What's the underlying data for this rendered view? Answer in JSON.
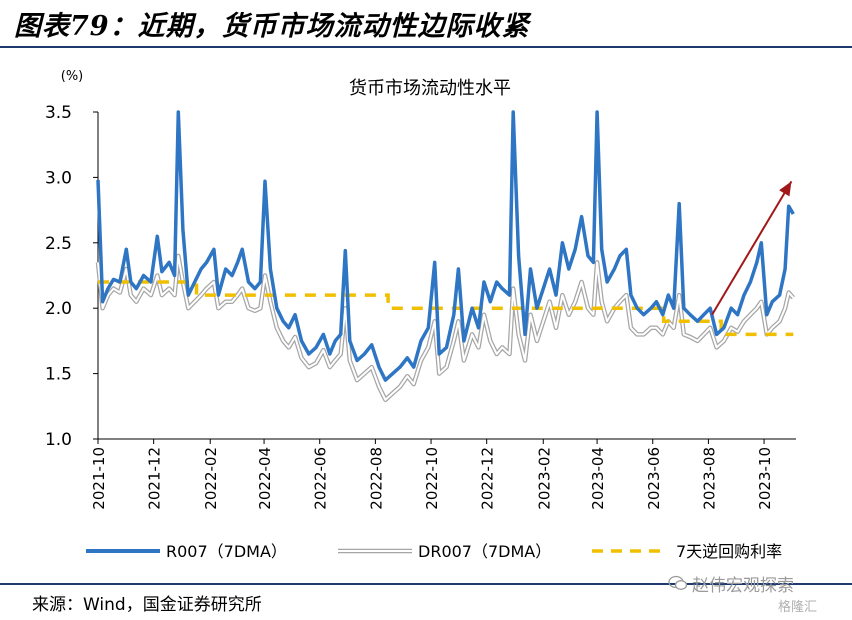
{
  "heading": "图表79：近期，货币市场流动性边际收紧",
  "source": "来源：Wind，国金证券研究所",
  "watermark": "赵伟宏观探索",
  "watermark2": "格隆汇",
  "chart_data": {
    "type": "line",
    "title": "货币市场流动性水平",
    "yunit": "(%)",
    "ylim": [
      1.0,
      3.5
    ],
    "yticks": [
      "1.0",
      "1.5",
      "2.0",
      "2.5",
      "3.0",
      "3.5"
    ],
    "xticks": [
      "2021-10",
      "2021-12",
      "2022-02",
      "2022-04",
      "2022-06",
      "2022-08",
      "2022-10",
      "2022-12",
      "2023-02",
      "2023-04",
      "2023-06",
      "2023-08",
      "2023-10"
    ],
    "xrange": [
      "2021-10-01",
      "2023-11-05"
    ],
    "legend": [
      "R007（7DMA）",
      "DR007（7DMA）",
      "7天逆回购利率"
    ],
    "colors": {
      "r007": "#2e75c4",
      "dr007": "#a6a6a6",
      "policy": "#f0c000",
      "arrow": "#a11818"
    },
    "series": [
      {
        "name": "R007（7DMA）",
        "points": [
          [
            "2021-10-01",
            2.98
          ],
          [
            "2021-10-06",
            2.05
          ],
          [
            "2021-10-12",
            2.15
          ],
          [
            "2021-10-18",
            2.22
          ],
          [
            "2021-10-25",
            2.2
          ],
          [
            "2021-11-01",
            2.45
          ],
          [
            "2021-11-06",
            2.2
          ],
          [
            "2021-11-12",
            2.15
          ],
          [
            "2021-11-20",
            2.25
          ],
          [
            "2021-11-28",
            2.2
          ],
          [
            "2021-12-05",
            2.55
          ],
          [
            "2021-12-10",
            2.28
          ],
          [
            "2021-12-18",
            2.35
          ],
          [
            "2021-12-24",
            2.25
          ],
          [
            "2021-12-28",
            3.5
          ],
          [
            "2022-01-02",
            2.6
          ],
          [
            "2022-01-08",
            2.1
          ],
          [
            "2022-01-15",
            2.2
          ],
          [
            "2022-01-22",
            2.3
          ],
          [
            "2022-01-28",
            2.35
          ],
          [
            "2022-02-05",
            2.45
          ],
          [
            "2022-02-10",
            2.1
          ],
          [
            "2022-02-18",
            2.3
          ],
          [
            "2022-02-25",
            2.25
          ],
          [
            "2022-03-03",
            2.35
          ],
          [
            "2022-03-08",
            2.45
          ],
          [
            "2022-03-15",
            2.2
          ],
          [
            "2022-03-22",
            2.15
          ],
          [
            "2022-03-28",
            2.2
          ],
          [
            "2022-04-02",
            2.97
          ],
          [
            "2022-04-08",
            2.3
          ],
          [
            "2022-04-15",
            2.0
          ],
          [
            "2022-04-22",
            1.9
          ],
          [
            "2022-04-28",
            1.85
          ],
          [
            "2022-05-05",
            1.95
          ],
          [
            "2022-05-12",
            1.75
          ],
          [
            "2022-05-20",
            1.65
          ],
          [
            "2022-05-28",
            1.7
          ],
          [
            "2022-06-05",
            1.8
          ],
          [
            "2022-06-12",
            1.65
          ],
          [
            "2022-06-18",
            1.75
          ],
          [
            "2022-06-24",
            1.8
          ],
          [
            "2022-06-29",
            2.44
          ],
          [
            "2022-07-04",
            1.75
          ],
          [
            "2022-07-12",
            1.6
          ],
          [
            "2022-07-20",
            1.65
          ],
          [
            "2022-07-28",
            1.72
          ],
          [
            "2022-08-05",
            1.55
          ],
          [
            "2022-08-12",
            1.45
          ],
          [
            "2022-08-20",
            1.5
          ],
          [
            "2022-08-28",
            1.55
          ],
          [
            "2022-09-05",
            1.62
          ],
          [
            "2022-09-12",
            1.55
          ],
          [
            "2022-09-20",
            1.75
          ],
          [
            "2022-09-28",
            1.85
          ],
          [
            "2022-10-05",
            2.35
          ],
          [
            "2022-10-10",
            1.65
          ],
          [
            "2022-10-18",
            1.7
          ],
          [
            "2022-10-26",
            1.95
          ],
          [
            "2022-10-31",
            2.3
          ],
          [
            "2022-11-06",
            1.75
          ],
          [
            "2022-11-15",
            2.0
          ],
          [
            "2022-11-22",
            1.85
          ],
          [
            "2022-11-28",
            2.2
          ],
          [
            "2022-12-05",
            2.05
          ],
          [
            "2022-12-12",
            2.2
          ],
          [
            "2022-12-18",
            2.15
          ],
          [
            "2022-12-26",
            2.1
          ],
          [
            "2022-12-30",
            3.5
          ],
          [
            "2023-01-05",
            2.4
          ],
          [
            "2023-01-12",
            1.8
          ],
          [
            "2023-01-18",
            2.3
          ],
          [
            "2023-01-25",
            2.0
          ],
          [
            "2023-02-01",
            2.15
          ],
          [
            "2023-02-08",
            2.3
          ],
          [
            "2023-02-15",
            2.1
          ],
          [
            "2023-02-22",
            2.5
          ],
          [
            "2023-03-01",
            2.3
          ],
          [
            "2023-03-08",
            2.45
          ],
          [
            "2023-03-15",
            2.7
          ],
          [
            "2023-03-22",
            2.4
          ],
          [
            "2023-03-28",
            2.35
          ],
          [
            "2023-04-01",
            3.5
          ],
          [
            "2023-04-06",
            2.45
          ],
          [
            "2023-04-12",
            2.2
          ],
          [
            "2023-04-20",
            2.3
          ],
          [
            "2023-04-26",
            2.4
          ],
          [
            "2023-05-03",
            2.45
          ],
          [
            "2023-05-08",
            2.1
          ],
          [
            "2023-05-15",
            2.0
          ],
          [
            "2023-05-22",
            1.95
          ],
          [
            "2023-05-30",
            2.0
          ],
          [
            "2023-06-05",
            2.05
          ],
          [
            "2023-06-12",
            1.95
          ],
          [
            "2023-06-18",
            2.1
          ],
          [
            "2023-06-24",
            2.0
          ],
          [
            "2023-06-30",
            2.8
          ],
          [
            "2023-07-05",
            2.0
          ],
          [
            "2023-07-12",
            1.95
          ],
          [
            "2023-07-20",
            1.9
          ],
          [
            "2023-07-27",
            1.95
          ],
          [
            "2023-08-03",
            2.0
          ],
          [
            "2023-08-10",
            1.8
          ],
          [
            "2023-08-18",
            1.85
          ],
          [
            "2023-08-26",
            2.0
          ],
          [
            "2023-09-02",
            1.95
          ],
          [
            "2023-09-09",
            2.1
          ],
          [
            "2023-09-16",
            2.2
          ],
          [
            "2023-09-23",
            2.35
          ],
          [
            "2023-09-28",
            2.5
          ],
          [
            "2023-10-04",
            1.95
          ],
          [
            "2023-10-10",
            2.05
          ],
          [
            "2023-10-18",
            2.1
          ],
          [
            "2023-10-24",
            2.3
          ],
          [
            "2023-10-28",
            2.78
          ],
          [
            "2023-11-02",
            2.72
          ]
        ]
      },
      {
        "name": "DR007（7DMA）",
        "points": [
          [
            "2021-10-01",
            2.35
          ],
          [
            "2021-10-06",
            2.0
          ],
          [
            "2021-10-12",
            2.1
          ],
          [
            "2021-10-18",
            2.15
          ],
          [
            "2021-10-25",
            2.12
          ],
          [
            "2021-11-01",
            2.3
          ],
          [
            "2021-11-06",
            2.1
          ],
          [
            "2021-11-12",
            2.05
          ],
          [
            "2021-11-20",
            2.15
          ],
          [
            "2021-11-28",
            2.1
          ],
          [
            "2021-12-05",
            2.25
          ],
          [
            "2021-12-10",
            2.1
          ],
          [
            "2021-12-18",
            2.15
          ],
          [
            "2021-12-24",
            2.1
          ],
          [
            "2021-12-28",
            2.4
          ],
          [
            "2022-01-02",
            2.2
          ],
          [
            "2022-01-08",
            2.0
          ],
          [
            "2022-01-15",
            2.05
          ],
          [
            "2022-01-22",
            2.1
          ],
          [
            "2022-01-28",
            2.15
          ],
          [
            "2022-02-05",
            2.2
          ],
          [
            "2022-02-10",
            2.0
          ],
          [
            "2022-02-18",
            2.05
          ],
          [
            "2022-02-25",
            2.05
          ],
          [
            "2022-03-03",
            2.1
          ],
          [
            "2022-03-08",
            2.15
          ],
          [
            "2022-03-15",
            2.0
          ],
          [
            "2022-03-22",
            1.98
          ],
          [
            "2022-03-28",
            2.0
          ],
          [
            "2022-04-02",
            2.25
          ],
          [
            "2022-04-08",
            2.05
          ],
          [
            "2022-04-15",
            1.85
          ],
          [
            "2022-04-22",
            1.75
          ],
          [
            "2022-04-28",
            1.7
          ],
          [
            "2022-05-05",
            1.78
          ],
          [
            "2022-05-12",
            1.62
          ],
          [
            "2022-05-20",
            1.55
          ],
          [
            "2022-05-28",
            1.58
          ],
          [
            "2022-06-05",
            1.68
          ],
          [
            "2022-06-12",
            1.55
          ],
          [
            "2022-06-18",
            1.6
          ],
          [
            "2022-06-24",
            1.65
          ],
          [
            "2022-06-29",
            2.0
          ],
          [
            "2022-07-04",
            1.6
          ],
          [
            "2022-07-12",
            1.45
          ],
          [
            "2022-07-20",
            1.5
          ],
          [
            "2022-07-28",
            1.55
          ],
          [
            "2022-08-05",
            1.4
          ],
          [
            "2022-08-12",
            1.3
          ],
          [
            "2022-08-20",
            1.35
          ],
          [
            "2022-08-28",
            1.4
          ],
          [
            "2022-09-05",
            1.48
          ],
          [
            "2022-09-12",
            1.42
          ],
          [
            "2022-09-20",
            1.6
          ],
          [
            "2022-09-28",
            1.7
          ],
          [
            "2022-10-05",
            1.9
          ],
          [
            "2022-10-10",
            1.5
          ],
          [
            "2022-10-18",
            1.55
          ],
          [
            "2022-10-26",
            1.75
          ],
          [
            "2022-10-31",
            1.9
          ],
          [
            "2022-11-06",
            1.6
          ],
          [
            "2022-11-15",
            1.8
          ],
          [
            "2022-11-22",
            1.7
          ],
          [
            "2022-11-28",
            1.95
          ],
          [
            "2022-12-05",
            1.75
          ],
          [
            "2022-12-12",
            1.65
          ],
          [
            "2022-12-18",
            1.7
          ],
          [
            "2022-12-26",
            1.65
          ],
          [
            "2022-12-30",
            2.15
          ],
          [
            "2023-01-05",
            1.8
          ],
          [
            "2023-01-12",
            1.6
          ],
          [
            "2023-01-18",
            1.95
          ],
          [
            "2023-01-25",
            1.75
          ],
          [
            "2023-02-01",
            1.9
          ],
          [
            "2023-02-08",
            2.05
          ],
          [
            "2023-02-15",
            1.85
          ],
          [
            "2023-02-22",
            2.1
          ],
          [
            "2023-03-01",
            1.95
          ],
          [
            "2023-03-08",
            2.05
          ],
          [
            "2023-03-15",
            2.2
          ],
          [
            "2023-03-22",
            2.0
          ],
          [
            "2023-03-28",
            1.95
          ],
          [
            "2023-04-01",
            2.35
          ],
          [
            "2023-04-06",
            2.05
          ],
          [
            "2023-04-12",
            1.9
          ],
          [
            "2023-04-20",
            2.0
          ],
          [
            "2023-04-26",
            2.05
          ],
          [
            "2023-05-03",
            2.1
          ],
          [
            "2023-05-08",
            1.85
          ],
          [
            "2023-05-15",
            1.8
          ],
          [
            "2023-05-22",
            1.8
          ],
          [
            "2023-05-30",
            1.85
          ],
          [
            "2023-06-05",
            1.85
          ],
          [
            "2023-06-12",
            1.8
          ],
          [
            "2023-06-18",
            1.9
          ],
          [
            "2023-06-24",
            1.85
          ],
          [
            "2023-06-30",
            2.1
          ],
          [
            "2023-07-05",
            1.8
          ],
          [
            "2023-07-12",
            1.78
          ],
          [
            "2023-07-20",
            1.75
          ],
          [
            "2023-07-27",
            1.8
          ],
          [
            "2023-08-03",
            1.85
          ],
          [
            "2023-08-10",
            1.7
          ],
          [
            "2023-08-18",
            1.75
          ],
          [
            "2023-08-26",
            1.85
          ],
          [
            "2023-09-02",
            1.82
          ],
          [
            "2023-09-09",
            1.9
          ],
          [
            "2023-09-16",
            1.95
          ],
          [
            "2023-09-23",
            2.0
          ],
          [
            "2023-09-28",
            2.05
          ],
          [
            "2023-10-04",
            1.8
          ],
          [
            "2023-10-10",
            1.85
          ],
          [
            "2023-10-18",
            1.9
          ],
          [
            "2023-10-24",
            2.0
          ],
          [
            "2023-10-28",
            2.12
          ],
          [
            "2023-11-02",
            2.08
          ]
        ]
      },
      {
        "name": "7天逆回购利率",
        "points": [
          [
            "2021-10-01",
            2.2
          ],
          [
            "2022-01-17",
            2.2
          ],
          [
            "2022-01-17",
            2.1
          ],
          [
            "2022-08-15",
            2.1
          ],
          [
            "2022-08-15",
            2.0
          ],
          [
            "2023-06-13",
            2.0
          ],
          [
            "2023-06-13",
            1.9
          ],
          [
            "2023-08-15",
            1.9
          ],
          [
            "2023-08-15",
            1.8
          ],
          [
            "2023-11-02",
            1.8
          ]
        ]
      }
    ],
    "annotation": {
      "type": "arrow",
      "from": [
        "2023-08-05",
        1.95
      ],
      "to": [
        "2023-10-31",
        2.97
      ]
    }
  }
}
